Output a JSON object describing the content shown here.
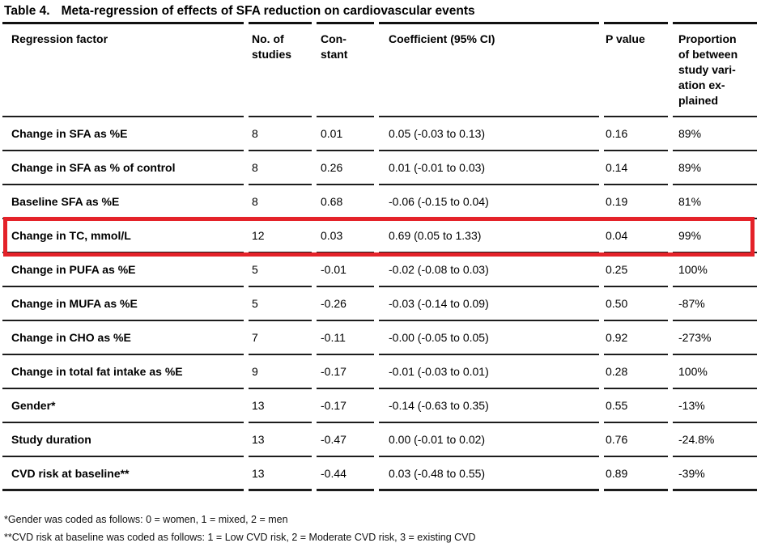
{
  "title": {
    "label": "Table 4.",
    "caption": "Meta-regression of effects of SFA reduction on cardiovascular events"
  },
  "table": {
    "headers": {
      "factor": "Regression factor",
      "studies": "No. of\nstudies",
      "constant": "Con-\nstant",
      "coefficient": "Coefficient (95% CI)",
      "p_value": "P value",
      "proportion": "Proportion\nof between\nstudy vari-\nation ex-\nplained"
    },
    "rows": [
      {
        "factor": "Change in SFA as %E",
        "studies": "8",
        "constant": "0.01",
        "coefficient": "0.05 (-0.03 to 0.13)",
        "p_value": "0.16",
        "proportion": "89%"
      },
      {
        "factor": "Change in SFA as % of control",
        "studies": "8",
        "constant": "0.26",
        "coefficient": "0.01 (-0.01 to 0.03)",
        "p_value": "0.14",
        "proportion": "89%"
      },
      {
        "factor": "Baseline SFA as %E",
        "studies": "8",
        "constant": "0.68",
        "coefficient": "-0.06 (-0.15 to 0.04)",
        "p_value": "0.19",
        "proportion": "81%"
      },
      {
        "factor": "Change in TC, mmol/L",
        "studies": "12",
        "constant": "0.03",
        "coefficient": "0.69 (0.05 to 1.33)",
        "p_value": "0.04",
        "proportion": "99%"
      },
      {
        "factor": "Change in PUFA as %E",
        "studies": "5",
        "constant": "-0.01",
        "coefficient": "-0.02 (-0.08 to 0.03)",
        "p_value": "0.25",
        "proportion": "100%"
      },
      {
        "factor": "Change in MUFA as %E",
        "studies": "5",
        "constant": "-0.26",
        "coefficient": "-0.03 (-0.14 to 0.09)",
        "p_value": "0.50",
        "proportion": "-87%"
      },
      {
        "factor": "Change in CHO as %E",
        "studies": "7",
        "constant": "-0.11",
        "coefficient": "-0.00 (-0.05 to 0.05)",
        "p_value": "0.92",
        "proportion": "-273%"
      },
      {
        "factor": "Change in total fat intake as %E",
        "studies": "9",
        "constant": "-0.17",
        "coefficient": "-0.01 (-0.03 to 0.01)",
        "p_value": "0.28",
        "proportion": "100%"
      },
      {
        "factor": "Gender*",
        "studies": "13",
        "constant": "-0.17",
        "coefficient": "-0.14 (-0.63 to 0.35)",
        "p_value": "0.55",
        "proportion": "-13%"
      },
      {
        "factor": "Study duration",
        "studies": "13",
        "constant": "-0.47",
        "coefficient": "0.00 (-0.01 to 0.02)",
        "p_value": "0.76",
        "proportion": "-24.8%"
      },
      {
        "factor": "CVD risk at baseline**",
        "studies": "13",
        "constant": "-0.44",
        "coefficient": "0.03 (-0.48 to 0.55)",
        "p_value": "0.89",
        "proportion": "-39%"
      }
    ]
  },
  "highlight": {
    "highlighted_row": "Change in TC, mmol/L",
    "color": "#e42229"
  },
  "footnotes": [
    "*Gender was coded as follows: 0 = women, 1 = mixed, 2 = men",
    "**CVD risk at baseline was coded as follows: 1 = Low CVD risk, 2 = Moderate CVD risk, 3 = existing CVD"
  ]
}
